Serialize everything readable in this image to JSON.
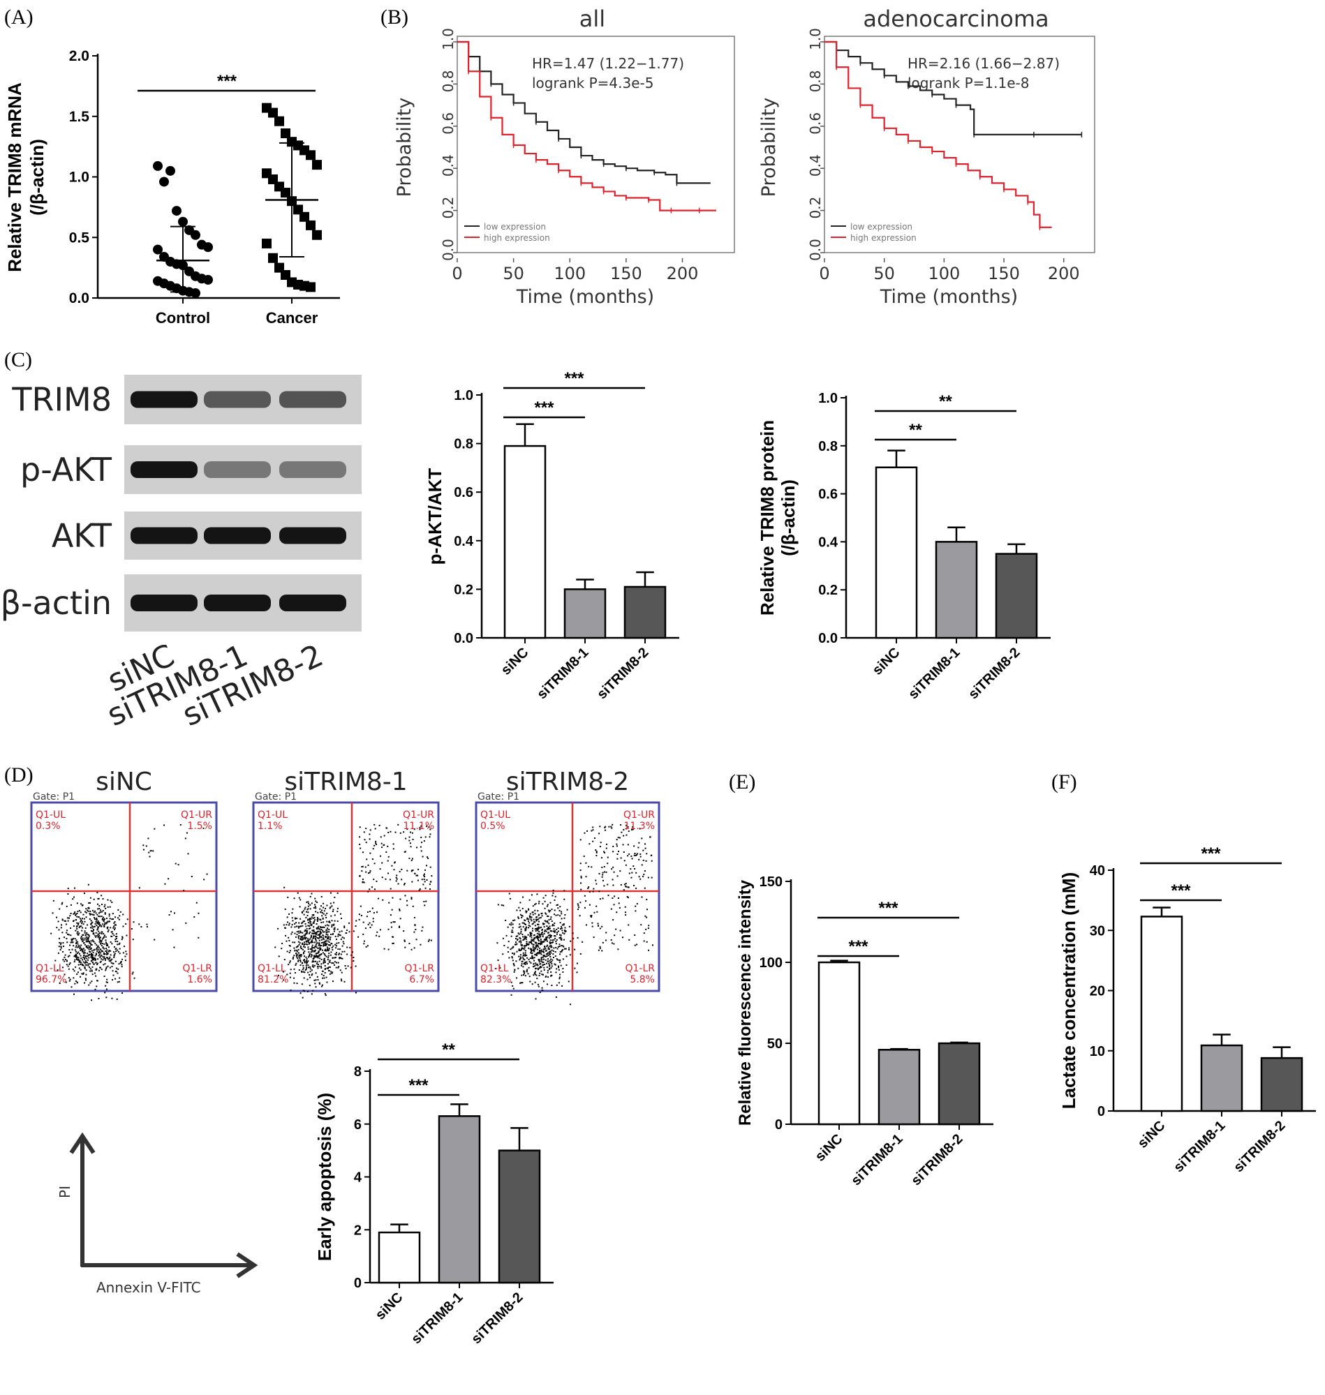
{
  "panels": {
    "A": {
      "label": "(A)"
    },
    "B": {
      "label": "(B)"
    },
    "C": {
      "label": "(C)"
    },
    "D": {
      "label": "(D)"
    },
    "E": {
      "label": "(E)"
    },
    "F": {
      "label": "(F)"
    }
  },
  "western": {
    "bands": [
      "TRIM8",
      "p-AKT",
      "AKT",
      "β-actin"
    ],
    "lanes": [
      "siNC",
      "siTRIM8-1",
      "siTRIM8-2"
    ],
    "intensity": {
      "TRIM8": [
        1.0,
        0.62,
        0.65
      ],
      "p-AKT": [
        1.0,
        0.45,
        0.45
      ],
      "AKT": [
        1.0,
        1.0,
        1.0
      ],
      "β-actin": [
        1.0,
        1.0,
        1.0
      ]
    }
  },
  "flow": {
    "titles": [
      "siNC",
      "siTRIM8-1",
      "siTRIM8-2"
    ],
    "gate": [
      "Gate: P1",
      "Gate: P1",
      "Gate: P1"
    ],
    "quadrants": [
      {
        "UL": "Q1-UL",
        "ULv": "0.3%",
        "UR": "Q1-UR",
        "URv": "1.5%",
        "LL": "Q1-LL",
        "LLv": "96.7%",
        "LR": "Q1-LR",
        "LRv": "1.6%"
      },
      {
        "UL": "Q1-UL",
        "ULv": "1.1%",
        "UR": "Q1-UR",
        "URv": "11.1%",
        "LL": "Q1-LL",
        "LLv": "81.2%",
        "LR": "Q1-LR",
        "LRv": "6.7%"
      },
      {
        "UL": "Q1-UL",
        "ULv": "0.5%",
        "UR": "Q1-UR",
        "URv": "11.3%",
        "LL": "Q1-LL",
        "LLv": "82.3%",
        "LR": "Q1-LR",
        "LRv": "5.8%"
      }
    ],
    "axis_x": "Annexin V-FITC",
    "axis_y": "PI"
  },
  "chart_data": [
    {
      "id": "A",
      "type": "scatter",
      "xlabel": "",
      "ylabel": "Relative TRIM8 mRNA",
      "ylabel2": "(/β-actin)",
      "categories": [
        "Control",
        "Cancer"
      ],
      "ylim": [
        0,
        2.0
      ],
      "yticks": [
        "0.0",
        "0.5",
        "1.0",
        "1.5",
        "2.0"
      ],
      "series": [
        {
          "name": "Control",
          "marker": "circle",
          "mean": 0.31,
          "sd_low": 0.05,
          "sd_high": 0.59,
          "values": [
            1.09,
            0.96,
            1.05,
            0.72,
            0.63,
            0.56,
            0.52,
            0.44,
            0.42,
            0.4,
            0.34,
            0.3,
            0.28,
            0.27,
            0.22,
            0.18,
            0.16,
            0.15,
            0.14,
            0.12,
            0.1,
            0.08,
            0.06,
            0.05,
            0.04
          ]
        },
        {
          "name": "Cancer",
          "marker": "square",
          "mean": 0.81,
          "sd_low": 0.34,
          "sd_high": 1.28,
          "values": [
            1.57,
            1.53,
            1.46,
            1.36,
            1.29,
            1.26,
            1.22,
            1.18,
            1.1,
            1.03,
            0.98,
            0.92,
            0.87,
            0.8,
            0.73,
            0.67,
            0.6,
            0.52,
            0.45,
            0.33,
            0.25,
            0.19,
            0.13,
            0.11,
            0.1,
            0.09
          ]
        }
      ],
      "significance": [
        {
          "label": "***",
          "from": 0,
          "to": 1
        }
      ]
    },
    {
      "id": "B1",
      "type": "line",
      "title": "all",
      "xlabel": "Time (months)",
      "ylabel": "Probability",
      "xlim": [
        0,
        240
      ],
      "ylim": [
        0,
        1.0
      ],
      "xticks": [
        "0",
        "50",
        "100",
        "150",
        "200"
      ],
      "yticks": [
        "0.0",
        "0.2",
        "0.4",
        "0.6",
        "0.8",
        "1.0"
      ],
      "annotation": [
        "HR=1.47 (1.22−1.77)",
        "logrank P=4.3e-5"
      ],
      "legend": [
        "low expression",
        "high expression"
      ],
      "series": [
        {
          "name": "low expression",
          "color": "#222222",
          "x": [
            0,
            10,
            20,
            30,
            40,
            50,
            60,
            70,
            80,
            90,
            100,
            110,
            120,
            130,
            140,
            150,
            160,
            175,
            185,
            195,
            225
          ],
          "y": [
            1.0,
            0.93,
            0.86,
            0.8,
            0.75,
            0.71,
            0.66,
            0.62,
            0.58,
            0.54,
            0.5,
            0.46,
            0.44,
            0.42,
            0.41,
            0.4,
            0.39,
            0.38,
            0.37,
            0.33,
            0.33
          ]
        },
        {
          "name": "high expression",
          "color": "#e0202a",
          "x": [
            0,
            10,
            20,
            30,
            40,
            50,
            60,
            70,
            80,
            90,
            100,
            110,
            120,
            130,
            140,
            150,
            160,
            170,
            180,
            190,
            200,
            215,
            230
          ],
          "y": [
            1.0,
            0.86,
            0.74,
            0.64,
            0.56,
            0.51,
            0.47,
            0.44,
            0.42,
            0.39,
            0.36,
            0.33,
            0.31,
            0.29,
            0.27,
            0.26,
            0.26,
            0.25,
            0.2,
            0.2,
            0.2,
            0.2,
            0.2
          ]
        }
      ]
    },
    {
      "id": "B2",
      "type": "line",
      "title": "adenocarcinoma",
      "xlabel": "Time (months)",
      "ylabel": "Probability",
      "xlim": [
        0,
        220
      ],
      "ylim": [
        0,
        1.0
      ],
      "xticks": [
        "0",
        "50",
        "100",
        "150",
        "200"
      ],
      "yticks": [
        "0.0",
        "0.2",
        "0.4",
        "0.6",
        "0.8",
        "1.0"
      ],
      "annotation": [
        "HR=2.16 (1.66−2.87)",
        "logrank P=1.1e-8"
      ],
      "legend": [
        "low expression",
        "high expression"
      ],
      "series": [
        {
          "name": "low expression",
          "color": "#222222",
          "x": [
            0,
            10,
            20,
            30,
            40,
            50,
            60,
            70,
            80,
            90,
            100,
            110,
            122,
            125,
            150,
            175,
            200,
            215
          ],
          "y": [
            1.0,
            0.96,
            0.93,
            0.9,
            0.87,
            0.84,
            0.81,
            0.79,
            0.77,
            0.75,
            0.73,
            0.7,
            0.68,
            0.56,
            0.56,
            0.56,
            0.56,
            0.56
          ]
        },
        {
          "name": "high expression",
          "color": "#e0202a",
          "x": [
            0,
            10,
            20,
            30,
            40,
            50,
            60,
            70,
            80,
            90,
            100,
            110,
            120,
            130,
            140,
            150,
            160,
            170,
            175,
            180,
            190
          ],
          "y": [
            1.0,
            0.88,
            0.78,
            0.7,
            0.64,
            0.59,
            0.56,
            0.53,
            0.5,
            0.48,
            0.45,
            0.42,
            0.39,
            0.36,
            0.33,
            0.3,
            0.27,
            0.24,
            0.18,
            0.12,
            0.12
          ]
        }
      ]
    },
    {
      "id": "C1",
      "type": "bar",
      "xlabel": "",
      "ylabel": "p-AKT/AKT",
      "ylim": [
        0,
        1.0
      ],
      "yticks": [
        "0.0",
        "0.2",
        "0.4",
        "0.6",
        "0.8",
        "1.0"
      ],
      "categories": [
        "siNC",
        "siTRIM8-1",
        "siTRIM8-2"
      ],
      "values": [
        0.79,
        0.2,
        0.21
      ],
      "errors": [
        0.09,
        0.04,
        0.06
      ],
      "colors": [
        "#ffffff",
        "#9b9b9f",
        "#575757"
      ],
      "significance": [
        {
          "label": "***",
          "from": 0,
          "to": 1
        },
        {
          "label": "***",
          "from": 0,
          "to": 2
        }
      ]
    },
    {
      "id": "C2",
      "type": "bar",
      "xlabel": "",
      "ylabel": "Relative TRIM8 protein",
      "ylabel2": "(/β-actin)",
      "ylim": [
        0,
        1.0
      ],
      "yticks": [
        "0.0",
        "0.2",
        "0.4",
        "0.6",
        "0.8",
        "1.0"
      ],
      "categories": [
        "siNC",
        "siTRIM8-1",
        "siTRIM8-2"
      ],
      "values": [
        0.71,
        0.4,
        0.35
      ],
      "errors": [
        0.07,
        0.06,
        0.04
      ],
      "colors": [
        "#ffffff",
        "#9b9b9f",
        "#575757"
      ],
      "significance": [
        {
          "label": "**",
          "from": 0,
          "to": 1
        },
        {
          "label": "**",
          "from": 0,
          "to": 2
        }
      ]
    },
    {
      "id": "D",
      "type": "bar",
      "xlabel": "",
      "ylabel": "Early apoptosis (%)",
      "ylim": [
        0,
        8
      ],
      "yticks": [
        "0",
        "2",
        "4",
        "6",
        "8"
      ],
      "categories": [
        "siNC",
        "siTRIM8-1",
        "siTRIM8-2"
      ],
      "values": [
        1.9,
        6.3,
        5.0
      ],
      "errors": [
        0.3,
        0.45,
        0.85
      ],
      "colors": [
        "#ffffff",
        "#9b9b9f",
        "#575757"
      ],
      "significance": [
        {
          "label": "***",
          "from": 0,
          "to": 1
        },
        {
          "label": "**",
          "from": 0,
          "to": 2
        }
      ]
    },
    {
      "id": "E",
      "type": "bar",
      "xlabel": "",
      "ylabel": "Relative fluorescence intensity",
      "ylim": [
        0,
        150
      ],
      "yticks": [
        "0",
        "50",
        "100",
        "150"
      ],
      "categories": [
        "siNC",
        "siTRIM8-1",
        "siTRIM8-2"
      ],
      "values": [
        100,
        46,
        50
      ],
      "errors": [
        1,
        0.5,
        0.5
      ],
      "colors": [
        "#ffffff",
        "#9b9b9f",
        "#575757"
      ],
      "significance": [
        {
          "label": "***",
          "from": 0,
          "to": 1
        },
        {
          "label": "***",
          "from": 0,
          "to": 2
        }
      ]
    },
    {
      "id": "F",
      "type": "bar",
      "xlabel": "",
      "ylabel": "Lactate concentration (mM)",
      "ylim": [
        0,
        40
      ],
      "yticks": [
        "0",
        "10",
        "20",
        "30",
        "40"
      ],
      "categories": [
        "siNC",
        "siTRIM8-1",
        "siTRIM8-2"
      ],
      "values": [
        32.3,
        10.9,
        8.8
      ],
      "errors": [
        1.5,
        1.8,
        1.8
      ],
      "colors": [
        "#ffffff",
        "#9b9b9f",
        "#575757"
      ],
      "significance": [
        {
          "label": "***",
          "from": 0,
          "to": 1
        },
        {
          "label": "***",
          "from": 0,
          "to": 2
        }
      ]
    }
  ]
}
